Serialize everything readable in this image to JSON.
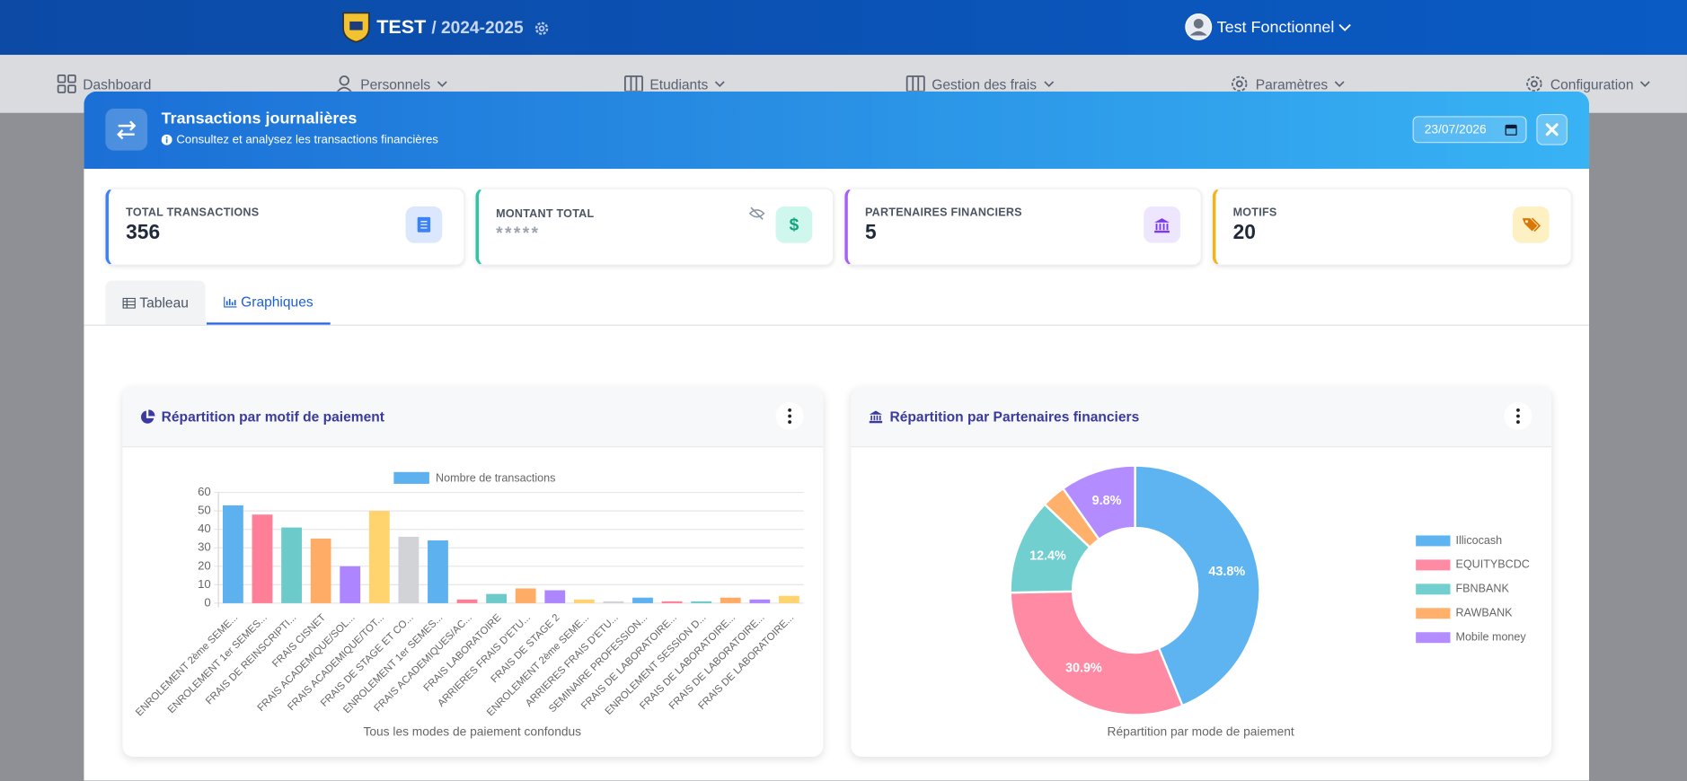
{
  "header": {
    "school": "TEST",
    "year": "/ 2024-2025",
    "user": "Test Fonctionnel"
  },
  "nav": [
    "Dashboard",
    "Personnels",
    "Etudiants",
    "Gestion des frais",
    "Paramètres",
    "Configuration"
  ],
  "modal": {
    "title": "Transactions journalières",
    "subtitle": "Consultez et analysez les transactions financières",
    "date": "23/07/2026"
  },
  "stats": [
    {
      "label": "TOTAL TRANSACTIONS",
      "value": 356
    },
    {
      "label": "MONTANT TOTAL",
      "value": "*****"
    },
    {
      "label": "PARTENAIRES FINANCIERS",
      "value": 5
    },
    {
      "label": "MOTIFS",
      "value": 20
    }
  ],
  "tabs": [
    "Tableau",
    "Graphiques"
  ],
  "chart_data": [
    {
      "type": "bar",
      "title": "Répartition par motif de paiement",
      "categories": [
        "ENROLEMENT 2ème SEME...",
        "ENROLEMENT 1er SEMES...",
        "FRAIS DE REINSCRIPTI...",
        "FRAIS CISNET",
        "FRAIS ACADEMIQUE/SOL...",
        "FRAIS ACADEMIQUE/TOT...",
        "FRAIS DE STAGE ET CO...",
        "ENROLEMENT 1er SEMES...",
        "FRAIS ACADEMIQUES/AC...",
        "FRAIS LABORATOIRE",
        "ARRIERES FRAIS D'ETU...",
        "FRAIS DE STAGE 2",
        "ENROLEMENT 2ème SEME...",
        "ARRIERES FRAIS D'ETU...",
        "SEMINAIRE PROFESSION...",
        "FRAIS DE LABORATOIRE...",
        "ENROLEMENT SESSION D...",
        "FRAIS DE LABORATOIRE...",
        "FRAIS DE LABORATOIRE...",
        "FRAIS DE LABORATOIRE..."
      ],
      "series": [
        {
          "name": "Nombre de transactions",
          "color": "#5eb1ef",
          "colors": [
            "#5eb1ef",
            "#ff7f98",
            "#6ccaca",
            "#ffad66",
            "#ad85ff",
            "#ffd36e",
            "#d1d3d6",
            "#5eb1ef",
            "#ff7f98",
            "#6ccaca",
            "#ffad66",
            "#ad85ff",
            "#ffd36e",
            "#d1d3d6",
            "#5eb1ef",
            "#ff7f98",
            "#6ccaca",
            "#ffad66",
            "#ad85ff",
            "#ffd36e"
          ],
          "values": [
            53,
            48,
            41,
            35,
            20,
            50,
            36,
            34,
            2,
            5,
            8,
            7,
            2,
            1,
            3,
            1,
            1,
            3,
            2,
            4
          ]
        }
      ],
      "ylim": [
        0,
        60
      ],
      "yticks": [
        0,
        10,
        20,
        30,
        40,
        50,
        60
      ],
      "grid": true,
      "legend": "top",
      "xlabel": "Tous les modes de paiement confondus"
    },
    {
      "type": "pie",
      "donut": true,
      "title": "Répartition par Partenaires financiers",
      "categories": [
        "Illicocash",
        "EQUITYBCDC",
        "FBNBANK",
        "RAWBANK",
        "Mobile money"
      ],
      "values": [
        43.8,
        30.9,
        12.4,
        3.1,
        9.8
      ],
      "value_labels": [
        "43.8%",
        "30.9%",
        "12.4%",
        null,
        "9.8%"
      ],
      "colors": [
        "#5eb4f0",
        "#ff8aa3",
        "#72cfcf",
        "#ffb06a",
        "#b38cff"
      ],
      "legend": "right",
      "caption": "Répartition par mode de paiement"
    }
  ]
}
